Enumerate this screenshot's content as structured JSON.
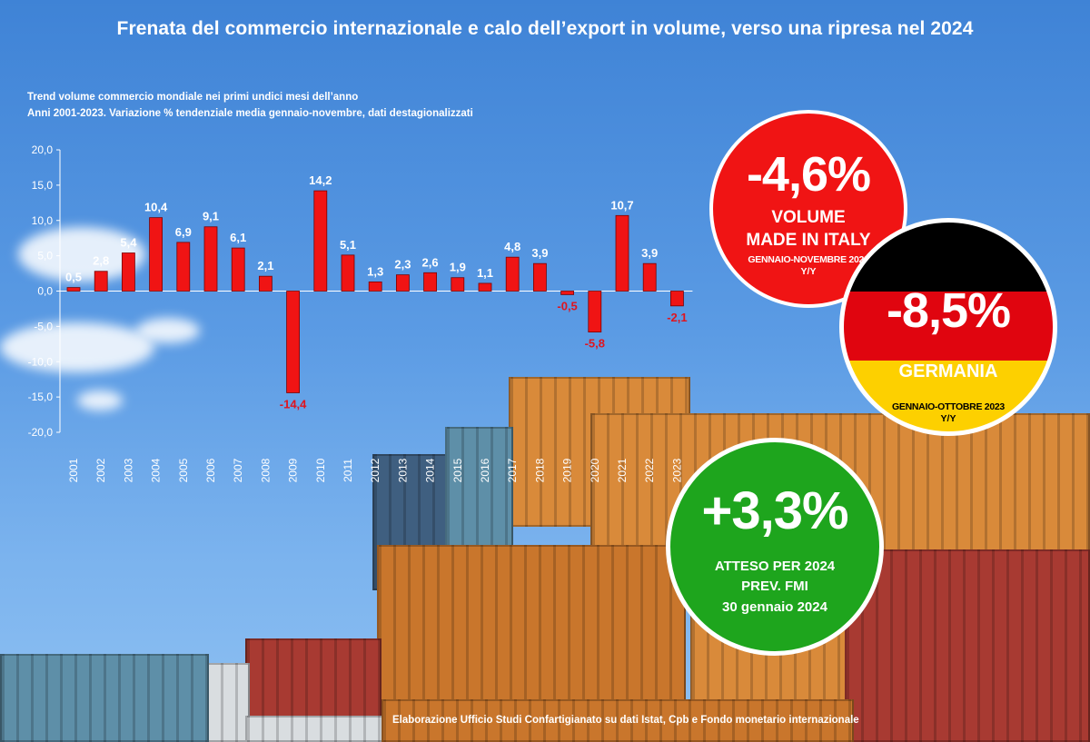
{
  "title": "Frenata del commercio internazionale e calo dell’export in volume, verso una ripresa nel 2024",
  "subtitle_line1": "Trend volume commercio mondiale nei primi undici mesi dell’anno",
  "subtitle_line2": "Anni 2001-2023. Variazione % tendenziale media gennaio-novembre, dati destagionalizzati",
  "source": "Elaborazione Ufficio Studi Confartigianato su dati Istat, Cpb e Fondo monetario internazionale",
  "chart_data": {
    "type": "bar",
    "categories": [
      "2001",
      "2002",
      "2003",
      "2004",
      "2005",
      "2006",
      "2007",
      "2008",
      "2009",
      "2010",
      "2011",
      "2012",
      "2013",
      "2014",
      "2015",
      "2016",
      "2017",
      "2018",
      "2019",
      "2020",
      "2021",
      "2022",
      "2023"
    ],
    "values": [
      0.5,
      2.8,
      5.4,
      10.4,
      6.9,
      9.1,
      6.1,
      2.1,
      -14.4,
      14.2,
      5.1,
      1.3,
      2.3,
      2.6,
      1.9,
      1.1,
      4.8,
      3.9,
      -0.5,
      -5.8,
      10.7,
      3.9,
      -2.1
    ],
    "value_labels": [
      "0,5",
      "2,8",
      "5,4",
      "10,4",
      "6,9",
      "9,1",
      "6,1",
      "2,1",
      "-14,4",
      "14,2",
      "5,1",
      "1,3",
      "2,3",
      "2,6",
      "1,9",
      "1,1",
      "4,8",
      "3,9",
      "-0,5",
      "-5,8",
      "10,7",
      "3,9",
      "-2,1"
    ],
    "ylim": [
      -20,
      20
    ],
    "yticks": [
      -20,
      -15,
      -10,
      -5,
      0,
      5,
      10,
      15,
      20
    ],
    "ytick_labels": [
      "-20,0",
      "-15,0",
      "-10,0",
      "-5,0",
      "0,0",
      "5,0",
      "10,0",
      "15,0",
      "20,0"
    ],
    "bar_color": "#f01414",
    "positive_label_color": "#ffffff",
    "negative_label_color": "#e0141e"
  },
  "callouts": {
    "italy": {
      "value": "-4,6%",
      "line1": "VOLUME",
      "line2": "MADE IN ITALY",
      "line3": "GENNAIO-NOVEMBRE 2023",
      "line4": "Y/Y",
      "color": "#f01414"
    },
    "germany": {
      "value": "-8,5%",
      "line1": "GERMANIA",
      "line2": "GENNAIO-OTTOBRE 2023",
      "line3": "Y/Y"
    },
    "imf": {
      "value": "+3,3%",
      "line1": "ATTESO PER 2024",
      "line2": "PREV. FMI",
      "line3": "30 gennaio 2024",
      "color": "#1ea51d"
    }
  }
}
